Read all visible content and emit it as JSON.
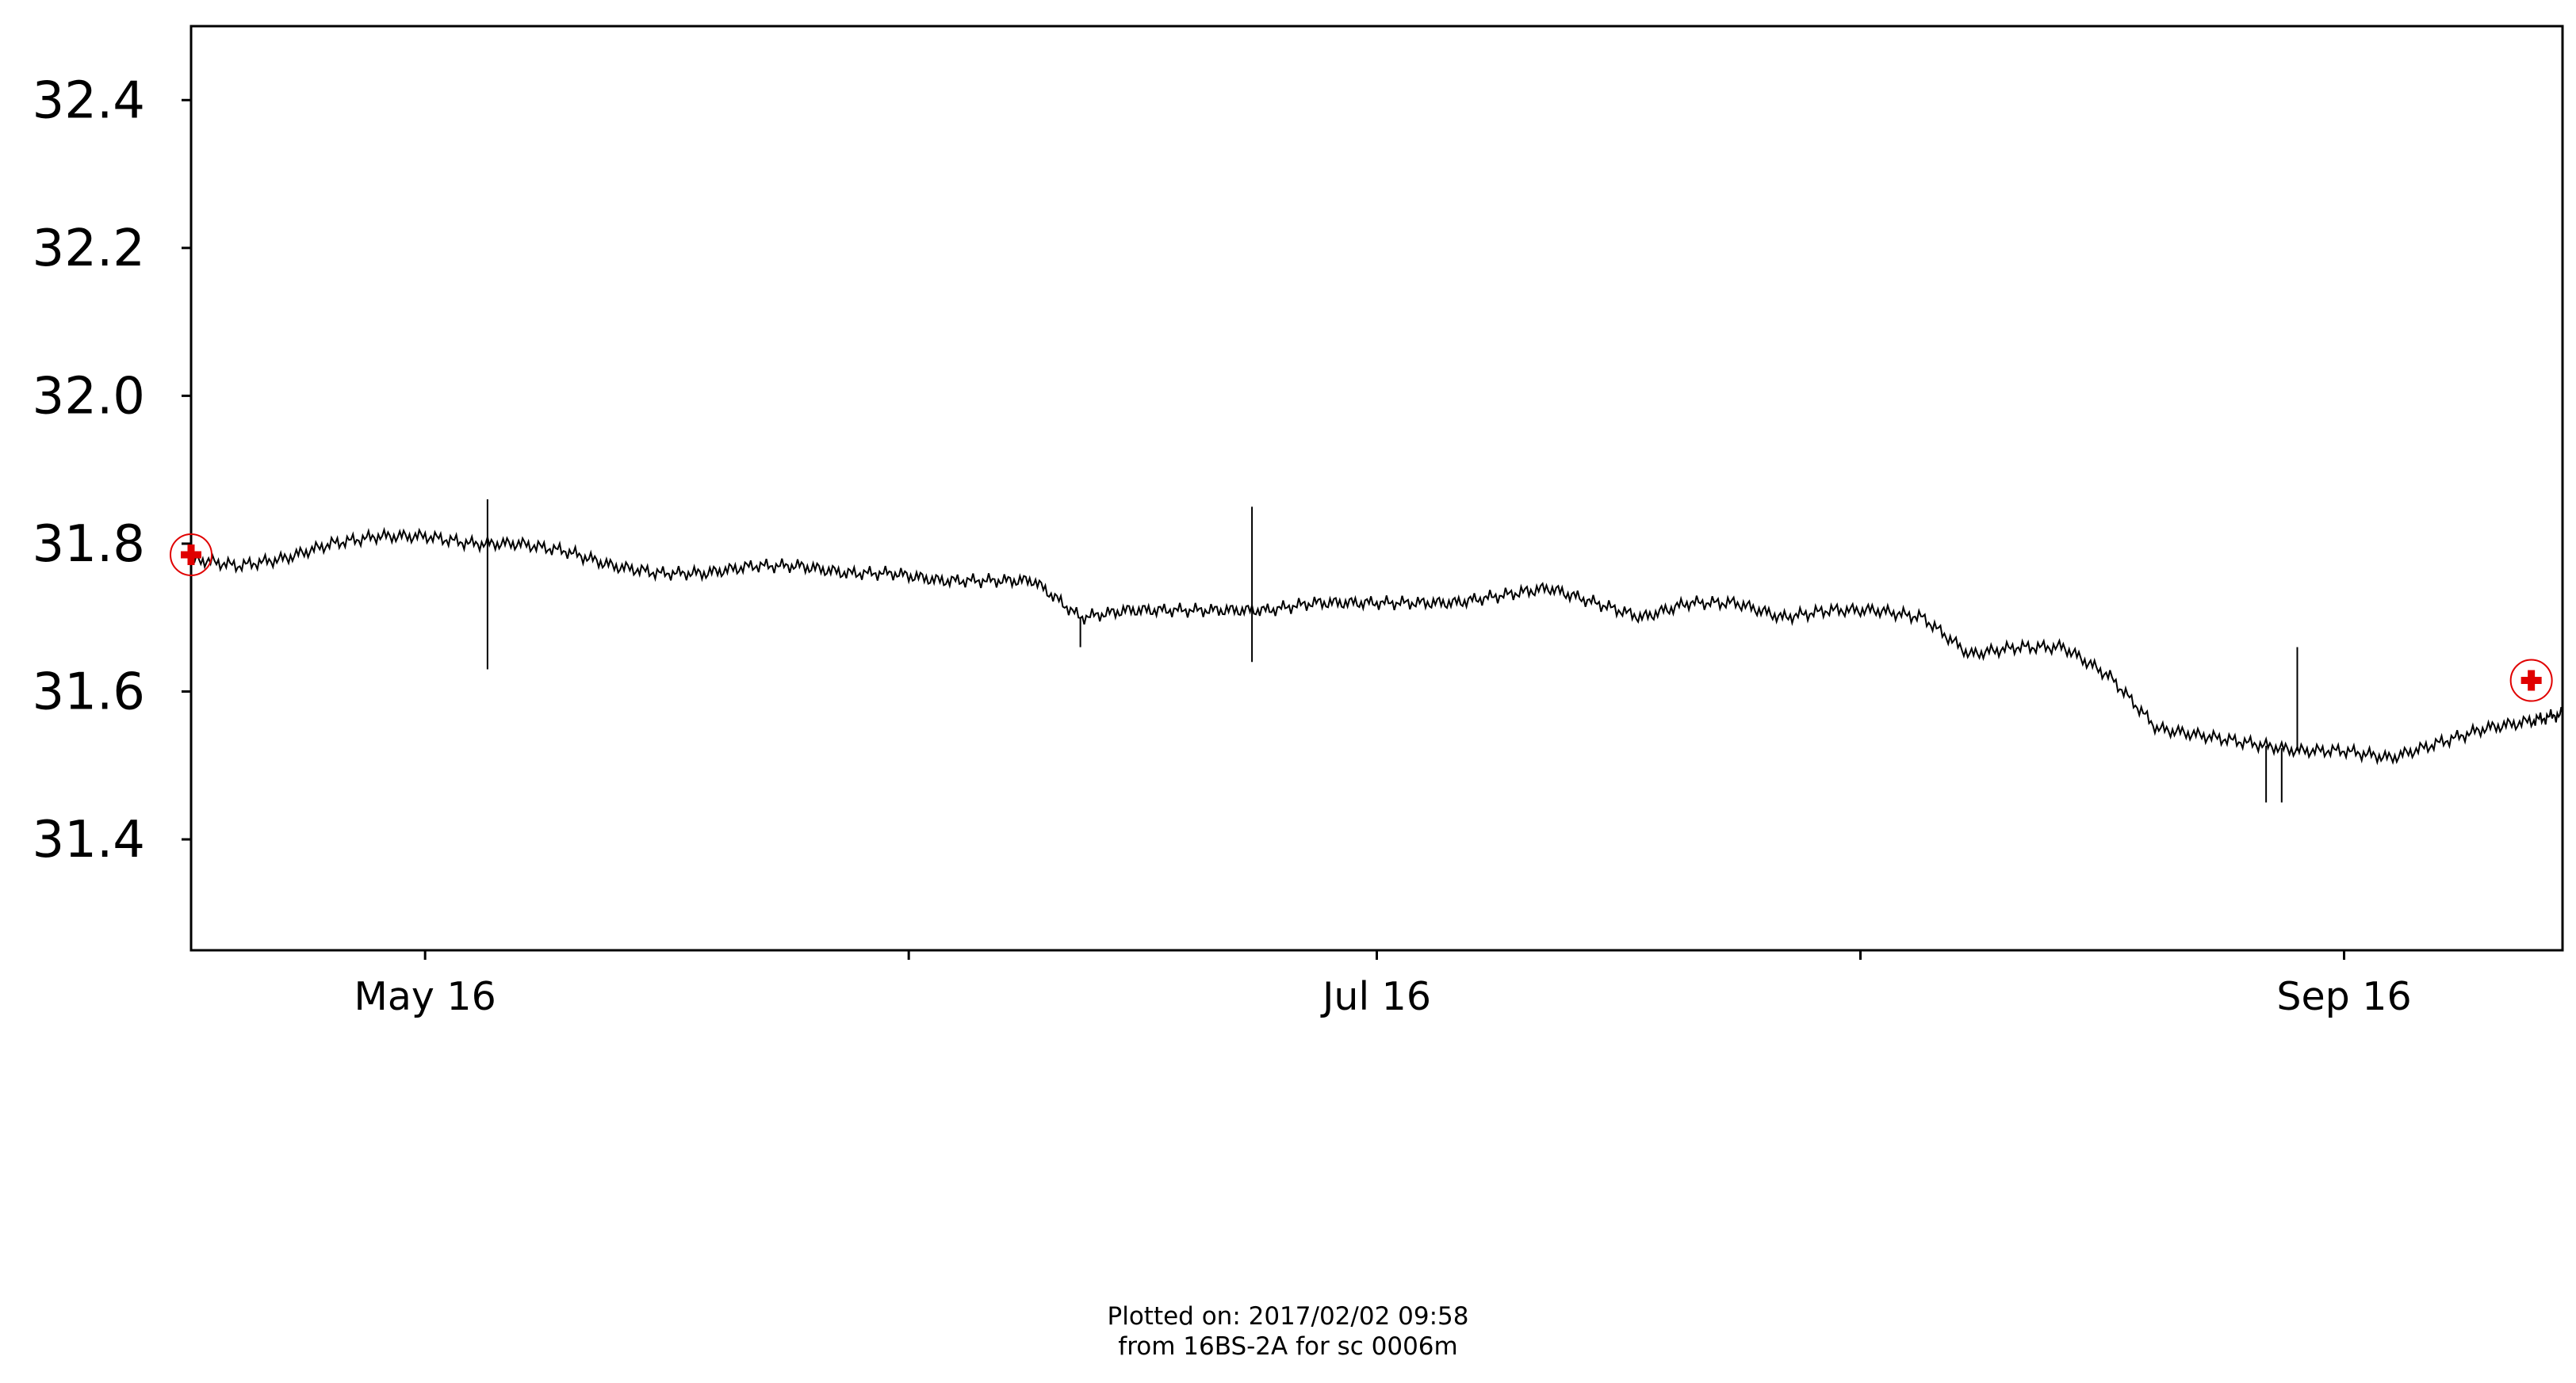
{
  "chart_data": {
    "type": "line",
    "title": "",
    "xlabel": "",
    "ylabel": "",
    "x_axis": "date",
    "xlim": [
      "2016-05-01",
      "2016-09-30"
    ],
    "ylim": [
      31.25,
      32.5
    ],
    "yticks": [
      31.4,
      31.6,
      31.8,
      32.0,
      32.2,
      32.4
    ],
    "ytick_labels": [
      "31.4",
      "31.6",
      "31.8",
      "32.0",
      "32.2",
      "32.4"
    ],
    "xticks": [
      "2016-05-16",
      "2016-06-16",
      "2016-07-16",
      "2016-08-16",
      "2016-09-16"
    ],
    "xtick_labels": [
      "May 16",
      "",
      "Jul 16",
      "",
      "Sep 16"
    ],
    "grid": false,
    "line_color": "#000000",
    "marker_color": "#e00000",
    "series": [
      {
        "x": [
          "2016-05-01",
          "2016-05-04",
          "2016-05-07",
          "2016-05-10",
          "2016-05-13",
          "2016-05-16",
          "2016-05-19",
          "2016-05-22",
          "2016-05-25",
          "2016-05-28",
          "2016-05-31",
          "2016-06-03",
          "2016-06-06",
          "2016-06-09",
          "2016-06-12",
          "2016-06-15",
          "2016-06-18",
          "2016-06-21",
          "2016-06-24",
          "2016-06-27",
          "2016-06-30",
          "2016-07-03",
          "2016-07-06",
          "2016-07-09",
          "2016-07-12",
          "2016-07-15",
          "2016-07-18",
          "2016-07-21",
          "2016-07-24",
          "2016-07-27",
          "2016-07-30",
          "2016-08-02",
          "2016-08-05",
          "2016-08-08",
          "2016-08-11",
          "2016-08-14",
          "2016-08-17",
          "2016-08-20",
          "2016-08-23",
          "2016-08-26",
          "2016-08-29",
          "2016-09-01",
          "2016-09-04",
          "2016-09-07",
          "2016-09-10",
          "2016-09-13",
          "2016-09-16",
          "2016-09-19",
          "2016-09-22",
          "2016-09-25",
          "2016-09-28",
          "2016-09-30"
        ],
        "y": [
          31.78,
          31.77,
          31.78,
          31.8,
          31.81,
          31.81,
          31.8,
          31.8,
          31.79,
          31.77,
          31.76,
          31.76,
          31.77,
          31.77,
          31.76,
          31.76,
          31.75,
          31.75,
          31.75,
          31.7,
          31.71,
          31.71,
          31.71,
          31.71,
          31.72,
          31.72,
          31.72,
          31.72,
          31.73,
          31.74,
          31.72,
          31.7,
          31.72,
          31.72,
          31.7,
          31.71,
          31.71,
          31.7,
          31.65,
          31.66,
          31.66,
          31.62,
          31.55,
          31.54,
          31.53,
          31.52,
          31.52,
          31.51,
          31.53,
          31.55,
          31.56,
          31.57
        ]
      }
    ],
    "outliers": [
      {
        "x": "2016-05-20",
        "y": 31.63
      },
      {
        "x": "2016-05-20",
        "y": 31.86
      },
      {
        "x": "2016-06-27",
        "y": 31.66
      },
      {
        "x": "2016-07-08",
        "y": 31.64
      },
      {
        "x": "2016-07-08",
        "y": 31.85
      },
      {
        "x": "2016-09-11",
        "y": 31.45
      },
      {
        "x": "2016-09-12",
        "y": 31.45
      },
      {
        "x": "2016-09-13",
        "y": 31.66
      }
    ],
    "markers": [
      {
        "x": "2016-05-01",
        "y": 31.785
      },
      {
        "x": "2016-09-28",
        "y": 31.615
      }
    ]
  },
  "footer": {
    "line1": "Plotted on: 2017/02/02 09:58",
    "line2": "from 16BS-2A for sc 0006m"
  }
}
